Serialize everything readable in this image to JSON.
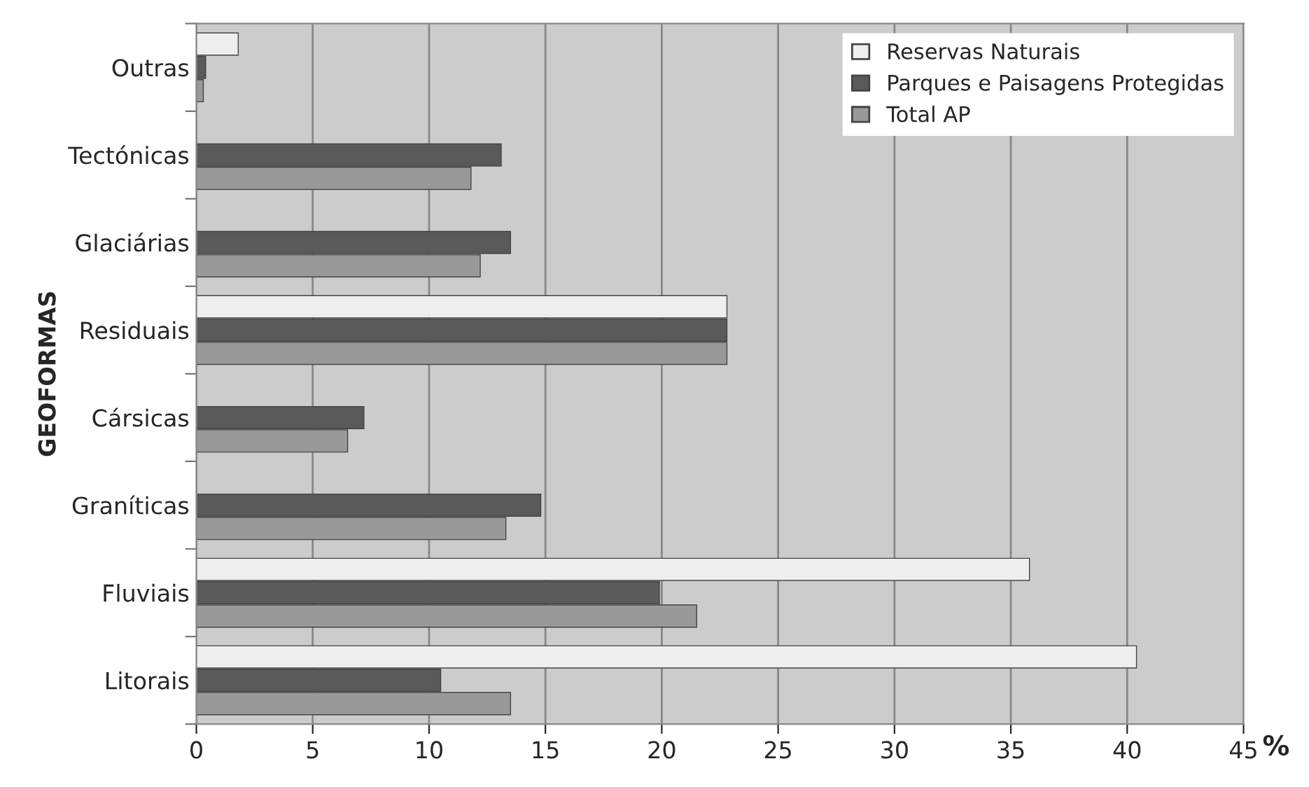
{
  "chart_data": {
    "type": "bar",
    "orientation": "horizontal",
    "ylabel": "GEOFORMAS",
    "xlabel": "%",
    "categories": [
      "Outras",
      "Tectónicas",
      "Glaciárias",
      "Residuais",
      "Cársicas",
      "Graníticas",
      "Fluviais",
      "Litorais"
    ],
    "series": [
      {
        "name": "Reservas Naturais",
        "color": "#eeeeee",
        "values": [
          1.8,
          null,
          null,
          22.8,
          null,
          null,
          35.8,
          40.4
        ]
      },
      {
        "name": "Parques e Paisagens Protegidas",
        "color": "#5a5a5a",
        "values": [
          0.4,
          13.1,
          13.5,
          22.8,
          7.2,
          14.8,
          19.9,
          10.5
        ]
      },
      {
        "name": "Total AP",
        "color": "#999999",
        "values": [
          0.3,
          11.8,
          12.2,
          22.8,
          6.5,
          13.3,
          21.5,
          13.5
        ]
      }
    ],
    "xlim": [
      0,
      45
    ],
    "xticks": [
      0,
      5,
      10,
      15,
      20,
      25,
      30,
      35,
      40,
      45
    ],
    "grid": "x",
    "legend": "top right"
  }
}
